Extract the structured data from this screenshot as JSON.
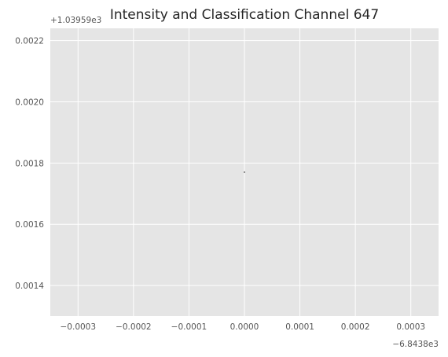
{
  "chart_data": {
    "type": "scatter",
    "title": "Intensity and Classification Channel 647",
    "xlabel": "",
    "ylabel": "",
    "x_offset_label": "−6.8438e3",
    "y_offset_label": "+1.03959e3",
    "xlim": [
      -0.00035,
      0.00035
    ],
    "ylim": [
      0.0013,
      0.00224
    ],
    "x_ticks": [
      -0.0003,
      -0.0002,
      -0.0001,
      0.0,
      0.0001,
      0.0002,
      0.0003
    ],
    "x_tick_labels": [
      "−0.0003",
      "−0.0002",
      "−0.0001",
      "0.0000",
      "0.0001",
      "0.0002",
      "0.0003"
    ],
    "y_ticks": [
      0.0014,
      0.0016,
      0.0018,
      0.002,
      0.0022
    ],
    "y_tick_labels": [
      "0.0014",
      "0.0016",
      "0.0018",
      "0.0020",
      "0.0022"
    ],
    "grid": true,
    "series": [
      {
        "x": [
          0.0
        ],
        "y": [
          0.00177
        ],
        "color": "#000000"
      }
    ]
  },
  "style": {
    "plot_background": "#e5e5e5",
    "grid_color": "#ffffff",
    "text_color": "#555555",
    "title_color": "#262626"
  }
}
